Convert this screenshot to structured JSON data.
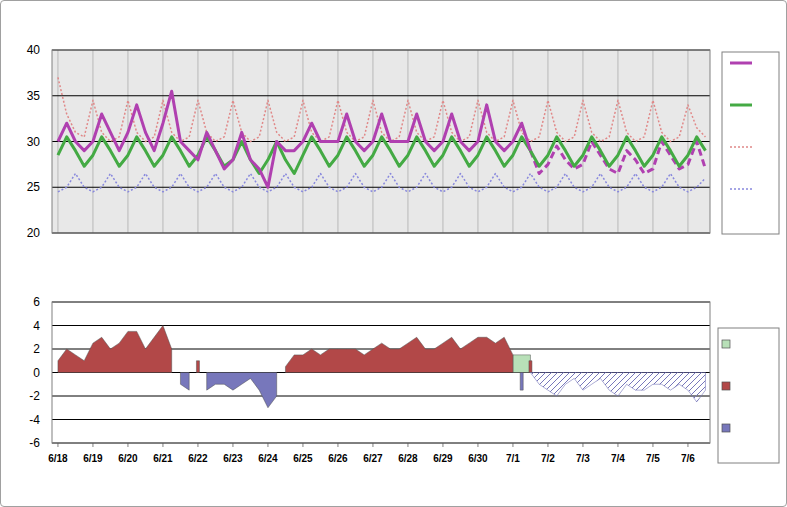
{
  "chart_data": [
    {
      "type": "line",
      "x": [
        0,
        0.25,
        0.5,
        0.75,
        1,
        1.25,
        1.5,
        1.75,
        2,
        2.25,
        2.5,
        2.75,
        3,
        3.25,
        3.5,
        3.75,
        4,
        4.25,
        4.5,
        4.75,
        5,
        5.25,
        5.5,
        5.75,
        6,
        6.25,
        6.5,
        6.75,
        7,
        7.25,
        7.5,
        7.75,
        8,
        8.25,
        8.5,
        8.75,
        9,
        9.25,
        9.5,
        9.75,
        10,
        10.25,
        10.5,
        10.75,
        11,
        11.25,
        11.5,
        11.75,
        12,
        12.25,
        12.5,
        12.75,
        13,
        13.25,
        13.5,
        13.75,
        14,
        14.25,
        14.5,
        14.75,
        15,
        15.25,
        15.5,
        15.75,
        16,
        16.25,
        16.5,
        16.75,
        17,
        17.25,
        17.5,
        17.75,
        18,
        18.25,
        18.5
      ],
      "xlim": [
        -0.17,
        18.63
      ],
      "xticks": [
        0,
        1,
        2,
        3,
        4,
        5,
        6,
        7,
        8,
        9,
        10,
        11,
        12,
        13,
        14,
        15,
        16,
        17,
        18
      ],
      "ylim": [
        20,
        40
      ],
      "yticks": [
        20,
        25,
        30,
        35,
        40
      ],
      "grid": true,
      "tick_labels": "y",
      "legend": "right",
      "series": [
        {
          "color": "#b040b0",
          "line_style": "solid",
          "values": [
            30,
            32,
            30,
            29,
            30,
            33,
            31,
            29,
            31,
            34,
            31,
            29,
            32,
            35.5,
            30,
            29,
            28,
            31,
            29,
            27,
            28,
            31,
            28,
            27,
            25,
            30,
            29,
            29,
            30,
            32,
            30,
            30,
            30,
            33,
            30,
            29,
            30,
            33,
            30,
            30,
            30,
            33,
            30,
            29,
            30,
            33,
            30,
            29,
            30,
            34,
            30,
            29,
            30,
            32,
            29,
            null,
            null,
            null,
            null,
            null,
            null,
            null,
            null,
            null,
            null,
            null,
            null,
            null,
            null,
            null,
            null,
            null,
            null,
            null,
            null
          ]
        },
        {
          "color": "#44aa44",
          "line_style": "solid",
          "values": [
            28.5,
            30.5,
            29,
            27.3,
            28.5,
            30.5,
            29,
            27.3,
            28.5,
            30.5,
            29,
            27.3,
            28.5,
            30.5,
            29,
            27.3,
            28.5,
            30.5,
            29,
            27.3,
            28,
            30,
            28,
            26.5,
            28,
            30,
            28,
            26.5,
            28.5,
            30.5,
            29,
            27.3,
            28.5,
            30.5,
            29,
            27.3,
            28.5,
            30.5,
            29,
            27.3,
            28.5,
            30.5,
            29,
            27.3,
            28.5,
            30.5,
            29,
            27.3,
            28.5,
            30.5,
            29,
            27.3,
            28.5,
            30.5,
            29,
            27.3,
            28.5,
            30.5,
            29,
            27.3,
            28.5,
            30.5,
            29,
            27.3,
            28.5,
            30.5,
            29,
            27.3,
            28.5,
            30.5,
            29,
            27.3,
            28.5,
            30.5,
            29
          ]
        },
        {
          "color": "#e08888",
          "line_style": "dotted",
          "values": [
            37,
            33,
            31,
            30.5,
            34.5,
            31,
            30,
            30.5,
            34.5,
            31,
            30,
            30.5,
            34.5,
            31,
            30,
            30.5,
            34.5,
            31,
            30,
            30.5,
            34.5,
            31,
            30,
            30.5,
            34.5,
            31,
            30,
            30.5,
            34.5,
            31,
            30,
            30.5,
            34.5,
            31,
            30,
            30.5,
            34.5,
            31,
            30,
            30.5,
            34.5,
            31,
            30,
            30.5,
            34.5,
            31,
            30,
            30.5,
            34.5,
            31,
            30,
            30.5,
            34.5,
            31,
            30,
            30.5,
            34.5,
            31,
            30,
            30.5,
            34.5,
            31,
            30,
            30.5,
            34.5,
            31,
            30,
            30.5,
            34.5,
            31,
            30,
            30.5,
            34,
            31.5,
            30.5
          ]
        },
        {
          "color": "#8888dd",
          "line_style": "dotted",
          "values": [
            24.5,
            25,
            26.5,
            25,
            24.5,
            25,
            26.5,
            25,
            24.5,
            25,
            26.5,
            25,
            24.5,
            25,
            26.5,
            25,
            24.5,
            25,
            26.5,
            25,
            24.5,
            25,
            26.5,
            25,
            24.5,
            25,
            26.5,
            25,
            24.5,
            25,
            26.5,
            25,
            24.5,
            25,
            26.5,
            25,
            24.5,
            25,
            26.5,
            25,
            24.5,
            25,
            26.5,
            25,
            24.5,
            25,
            26.5,
            25,
            24.5,
            25,
            26.5,
            25,
            24.5,
            25,
            26.5,
            25,
            24.5,
            25,
            26.5,
            25,
            24.5,
            25,
            26.5,
            25,
            24.5,
            25,
            26.5,
            25,
            24.5,
            25,
            26.5,
            25,
            24.5,
            25,
            26
          ]
        },
        {
          "color": "#b040b0",
          "line_style": "dashed",
          "values": [
            null,
            null,
            null,
            null,
            null,
            null,
            null,
            null,
            null,
            null,
            null,
            null,
            null,
            null,
            null,
            null,
            null,
            null,
            null,
            null,
            null,
            null,
            null,
            null,
            null,
            null,
            null,
            null,
            null,
            null,
            null,
            null,
            null,
            null,
            null,
            null,
            null,
            null,
            null,
            null,
            null,
            null,
            null,
            null,
            null,
            null,
            null,
            null,
            null,
            null,
            null,
            null,
            null,
            null,
            29,
            26.5,
            27.5,
            29.5,
            28,
            27,
            27.5,
            30,
            28.5,
            27,
            26.5,
            29,
            28,
            26.5,
            27,
            30,
            28.5,
            27,
            27.5,
            30,
            27
          ]
        }
      ]
    },
    {
      "type": "area",
      "x": [
        0,
        0.25,
        0.5,
        0.75,
        1,
        1.25,
        1.5,
        1.75,
        2,
        2.25,
        2.5,
        2.75,
        3,
        3.25,
        3.5,
        3.75,
        4,
        4.25,
        4.5,
        4.75,
        5,
        5.25,
        5.5,
        5.75,
        6,
        6.25,
        6.5,
        6.75,
        7,
        7.25,
        7.5,
        7.75,
        8,
        8.25,
        8.5,
        8.75,
        9,
        9.25,
        9.5,
        9.75,
        10,
        10.25,
        10.5,
        10.75,
        11,
        11.25,
        11.5,
        11.75,
        12,
        12.25,
        12.5,
        12.75,
        13,
        13.25,
        13.5,
        13.75,
        14,
        14.25,
        14.5,
        14.75,
        15,
        15.25,
        15.5,
        15.75,
        16,
        16.25,
        16.5,
        16.75,
        17,
        17.25,
        17.5,
        17.75,
        18,
        18.25,
        18.5
      ],
      "xlim": [
        -0.17,
        18.63
      ],
      "xticks": [
        {
          "value": 0,
          "label": "6/18"
        },
        {
          "value": 1,
          "label": "6/19"
        },
        {
          "value": 2,
          "label": "6/20"
        },
        {
          "value": 3,
          "label": "6/21"
        },
        {
          "value": 4,
          "label": "6/22"
        },
        {
          "value": 5,
          "label": "6/23"
        },
        {
          "value": 6,
          "label": "6/24"
        },
        {
          "value": 7,
          "label": "6/25"
        },
        {
          "value": 8,
          "label": "6/26"
        },
        {
          "value": 9,
          "label": "6/27"
        },
        {
          "value": 10,
          "label": "6/28"
        },
        {
          "value": 11,
          "label": "6/29"
        },
        {
          "value": 12,
          "label": "6/30"
        },
        {
          "value": 13,
          "label": "7/1"
        },
        {
          "value": 14,
          "label": "7/2"
        },
        {
          "value": 15,
          "label": "7/3"
        },
        {
          "value": 16,
          "label": "7/4"
        },
        {
          "value": 17,
          "label": "7/5"
        },
        {
          "value": 18,
          "label": "7/6"
        }
      ],
      "ylim": [
        -6,
        6
      ],
      "yticks": [
        -6,
        -4,
        -2,
        0,
        2,
        4,
        6
      ],
      "grid": true,
      "legend": "right",
      "series": [
        {
          "color": "#b8e0b8",
          "line_style": "solid",
          "values": [
            null,
            null,
            null,
            null,
            null,
            null,
            null,
            null,
            null,
            null,
            null,
            null,
            null,
            null,
            null,
            null,
            null,
            null,
            null,
            null,
            null,
            null,
            null,
            null,
            null,
            null,
            null,
            null,
            null,
            null,
            null,
            null,
            null,
            null,
            null,
            null,
            null,
            null,
            null,
            null,
            null,
            null,
            null,
            null,
            null,
            null,
            null,
            null,
            null,
            null,
            null,
            null,
            1.5,
            1.5,
            1.5,
            null,
            null,
            null,
            null,
            null,
            null,
            null,
            null,
            null,
            null,
            null,
            null,
            null,
            null,
            null,
            null,
            null,
            null,
            null,
            null
          ]
        },
        {
          "color": "#b24848",
          "line_style": "solid",
          "values": [
            1,
            2,
            1.5,
            1,
            2.5,
            3,
            2,
            2.5,
            3.5,
            3.5,
            2,
            3,
            4,
            2,
            null,
            null,
            1,
            null,
            null,
            null,
            null,
            null,
            null,
            null,
            null,
            null,
            0.5,
            1.5,
            1.5,
            2,
            1.5,
            2,
            2,
            2,
            2,
            1.5,
            2,
            2.5,
            2,
            2,
            2.5,
            3,
            2,
            2,
            2.5,
            3,
            2,
            2.5,
            3,
            3,
            2.5,
            3,
            1.5,
            null,
            1,
            null,
            null,
            null,
            null,
            null,
            null,
            null,
            null,
            null,
            null,
            null,
            null,
            null,
            null,
            null,
            null,
            null,
            null,
            null,
            null
          ]
        },
        {
          "color": "#7777bb",
          "line_style": "solid",
          "values": [
            null,
            null,
            null,
            null,
            null,
            null,
            null,
            null,
            null,
            null,
            null,
            null,
            null,
            null,
            -1,
            -1.5,
            null,
            -1.5,
            -1,
            -1,
            -1.5,
            -1,
            -0.5,
            -1.5,
            -3,
            -2,
            null,
            null,
            null,
            null,
            null,
            null,
            null,
            null,
            null,
            null,
            null,
            null,
            null,
            null,
            null,
            null,
            null,
            null,
            null,
            null,
            null,
            null,
            null,
            null,
            null,
            null,
            null,
            -1.5,
            null,
            null,
            null,
            null,
            null,
            null,
            null,
            null,
            null,
            null,
            null,
            null,
            null,
            null,
            null,
            null,
            null,
            null,
            null,
            null,
            null
          ]
        },
        {
          "color": "#7777bb",
          "line_style": "hatched",
          "values": [
            null,
            null,
            null,
            null,
            null,
            null,
            null,
            null,
            null,
            null,
            null,
            null,
            null,
            null,
            null,
            null,
            null,
            null,
            null,
            null,
            null,
            null,
            null,
            null,
            null,
            null,
            null,
            null,
            null,
            null,
            null,
            null,
            null,
            null,
            null,
            null,
            null,
            null,
            null,
            null,
            null,
            null,
            null,
            null,
            null,
            null,
            null,
            null,
            null,
            null,
            null,
            null,
            null,
            null,
            0,
            -1,
            -1.5,
            -2,
            -1,
            -0.5,
            -1.5,
            -1,
            -0.5,
            -1.5,
            -2,
            -1,
            -1.5,
            -1.5,
            -1,
            -1,
            -1.5,
            -1,
            -1.5,
            -2.5,
            -1.5
          ]
        }
      ]
    }
  ]
}
